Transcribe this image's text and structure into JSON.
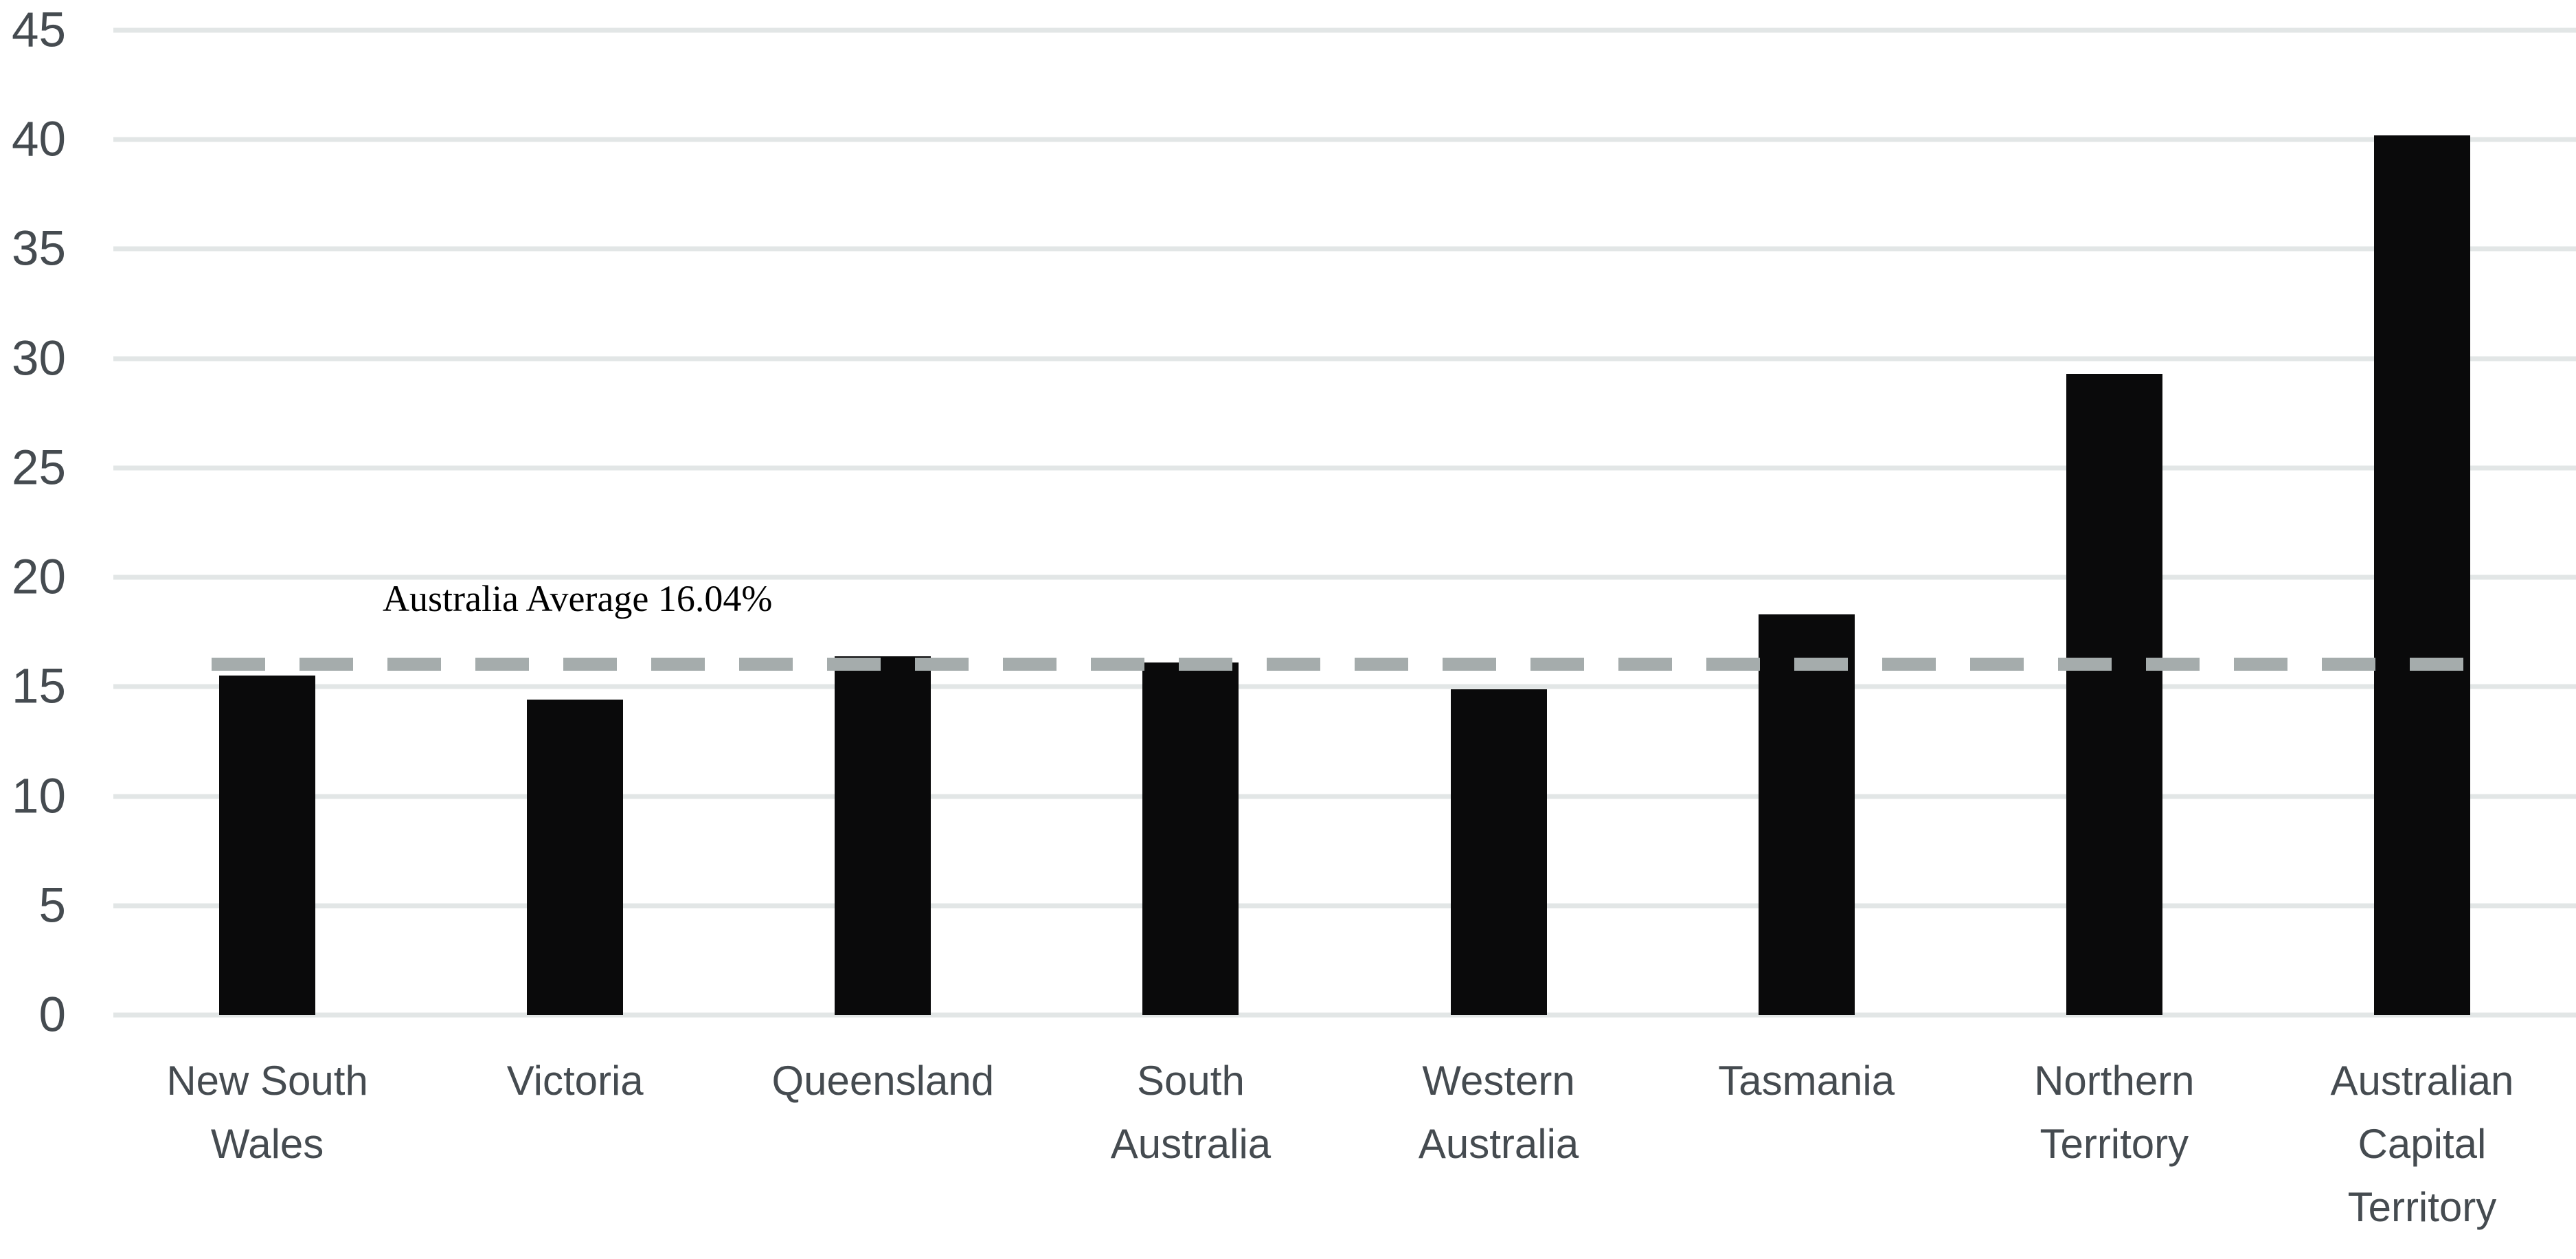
{
  "chart_data": {
    "type": "bar",
    "title": "",
    "categories": [
      "New South Wales",
      "Victoria",
      "Queensland",
      "South Australia",
      "Western Australia",
      "Tasmania",
      "Northern Territory",
      "Australian Capital Territory"
    ],
    "category_display_lines": [
      "New South\nWales",
      "Victoria",
      "Queensland",
      "South\nAustralia",
      "Western\nAustralia",
      "Tasmania",
      "Northern\nTerritory",
      "Australian\nCapital\nTerritory"
    ],
    "values": [
      15.5,
      14.4,
      16.4,
      16.1,
      14.9,
      18.3,
      29.3,
      40.2
    ],
    "unit": "%",
    "average_line": {
      "value": 16.04,
      "label": "Australia Average 16.04%"
    },
    "xlabel": "",
    "ylabel": "",
    "ylim": [
      0,
      45
    ],
    "yticks": [
      0,
      5,
      10,
      15,
      20,
      25,
      30,
      35,
      40,
      45
    ],
    "grid": "horizontal-gridlines",
    "legend": "none",
    "bar_color": "#0a0a0b",
    "average_line_color": "#a5acac",
    "gridline_color": "#e2e6e6",
    "axis_text_color": "#454b50",
    "annotation_text_color": "#000000"
  }
}
